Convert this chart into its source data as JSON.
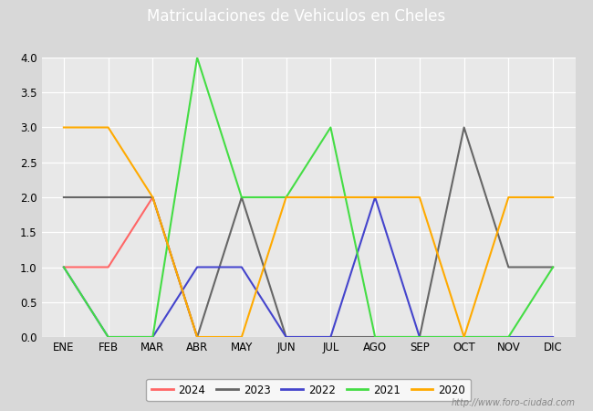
{
  "title": "Matriculaciones de Vehiculos en Cheles",
  "months": [
    "ENE",
    "FEB",
    "MAR",
    "ABR",
    "MAY",
    "JUN",
    "JUL",
    "AGO",
    "SEP",
    "OCT",
    "NOV",
    "DIC"
  ],
  "series": {
    "2024": {
      "values": [
        1,
        1,
        2,
        0,
        null,
        null,
        null,
        null,
        null,
        null,
        null,
        null
      ],
      "color": "#ff6666",
      "label": "2024"
    },
    "2023": {
      "values": [
        2,
        2,
        2,
        0,
        2,
        0,
        0,
        0,
        0,
        3,
        1,
        1
      ],
      "color": "#666666",
      "label": "2023"
    },
    "2022": {
      "values": [
        1,
        0,
        0,
        1,
        1,
        0,
        0,
        2,
        0,
        0,
        0,
        0
      ],
      "color": "#4444cc",
      "label": "2022"
    },
    "2021": {
      "values": [
        1,
        0,
        0,
        4,
        2,
        2,
        3,
        0,
        0,
        0,
        0,
        1
      ],
      "color": "#44dd44",
      "label": "2021"
    },
    "2020": {
      "values": [
        3,
        3,
        2,
        0,
        0,
        2,
        2,
        2,
        2,
        0,
        2,
        2
      ],
      "color": "#ffaa00",
      "label": "2020"
    }
  },
  "ylim": [
    0,
    4.0
  ],
  "yticks": [
    0.0,
    0.5,
    1.0,
    1.5,
    2.0,
    2.5,
    3.0,
    3.5,
    4.0
  ],
  "bg_color": "#d8d8d8",
  "plot_bg_color": "#e8e8e8",
  "title_bg_color": "#5599cc",
  "title_text_color": "#ffffff",
  "watermark": "http://www.foro-ciudad.com",
  "legend_order": [
    "2024",
    "2023",
    "2022",
    "2021",
    "2020"
  ]
}
